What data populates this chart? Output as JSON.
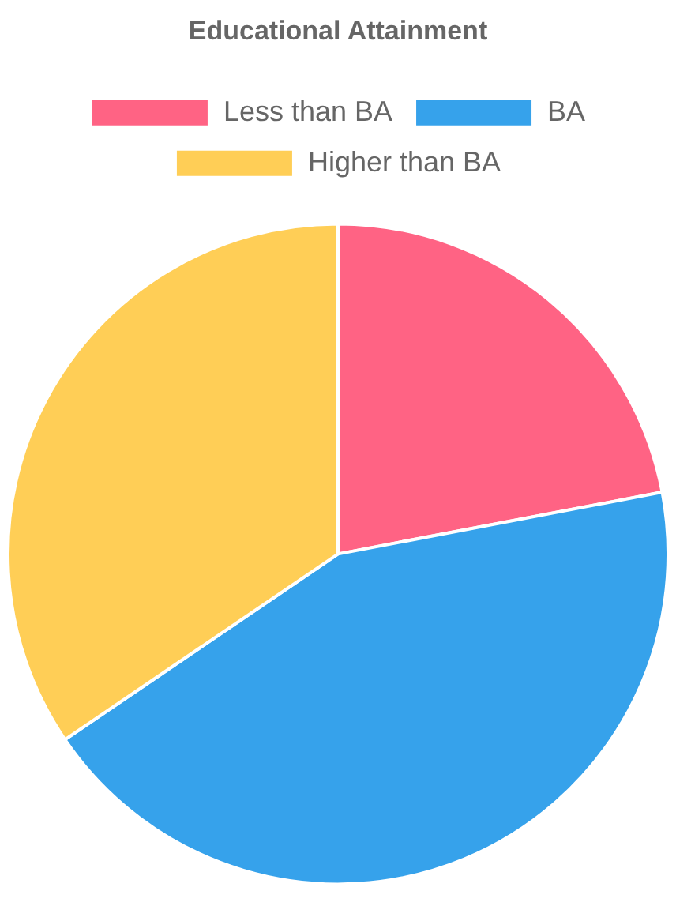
{
  "chart_data": {
    "type": "pie",
    "title": "Educational Attainment",
    "legend": "top",
    "categories": [
      "Less than BA",
      "BA",
      "Higher than BA"
    ],
    "values": [
      22,
      43.5,
      34.5
    ],
    "colors": [
      "#ff6384",
      "#36a2eb",
      "#ffce56"
    ]
  }
}
